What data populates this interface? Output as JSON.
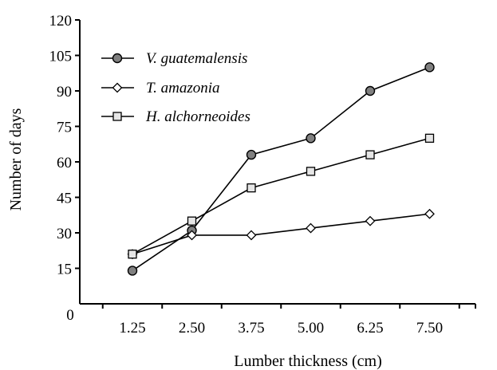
{
  "chart_data": {
    "type": "line",
    "title": "",
    "xlabel": "Lumber thickness (cm)",
    "ylabel": "Number of days",
    "categories": [
      "1.25",
      "2.50",
      "3.75",
      "5.00",
      "6.25",
      "7.50"
    ],
    "x_origin_label": "0",
    "yticks": [
      "15",
      "30",
      "45",
      "60",
      "75",
      "90",
      "105",
      "120"
    ],
    "ylim": [
      0,
      120
    ],
    "grid": false,
    "legend_position": "top-left",
    "series": [
      {
        "name": "V. guatemalensis",
        "marker": "circle",
        "marker_fill": "#808080",
        "values": [
          14,
          31,
          63,
          70,
          90,
          100
        ]
      },
      {
        "name": "T. amazonia",
        "marker": "diamond",
        "marker_fill": "#ffffff",
        "values": [
          21,
          29,
          29,
          32,
          35,
          38
        ]
      },
      {
        "name": "H. alchorneoides",
        "marker": "square",
        "marker_fill": "#e6e6e6",
        "values": [
          21,
          35,
          49,
          56,
          63,
          70
        ]
      }
    ]
  }
}
